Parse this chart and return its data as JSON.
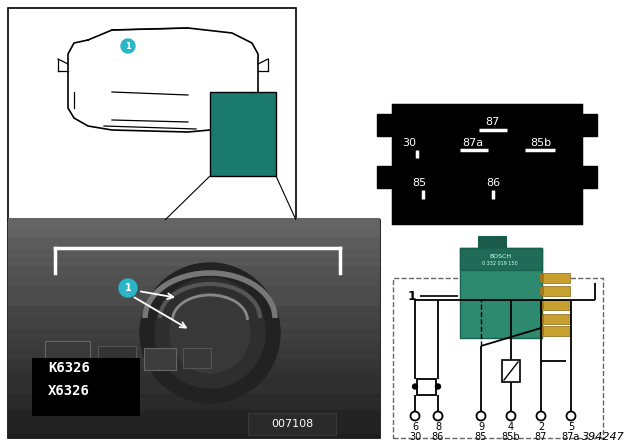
{
  "bg_color": "#ffffff",
  "teal_color": "#1a7a6e",
  "marker_color": "#29b6c8",
  "part_number": "394247",
  "image_number": "007108",
  "pin_labels_r1": [
    "6",
    "8",
    "9",
    "4",
    "2",
    "5"
  ],
  "pin_labels_r2": [
    "30",
    "86",
    "85",
    "85b",
    "87",
    "87a"
  ],
  "relay_box_labels": [
    "87",
    "30",
    "87a",
    "85b",
    "85",
    "86"
  ],
  "relay_green": "#2d8a6e",
  "relay_green_dark": "#1f6b55",
  "relay_green_darkest": "#1a6050"
}
